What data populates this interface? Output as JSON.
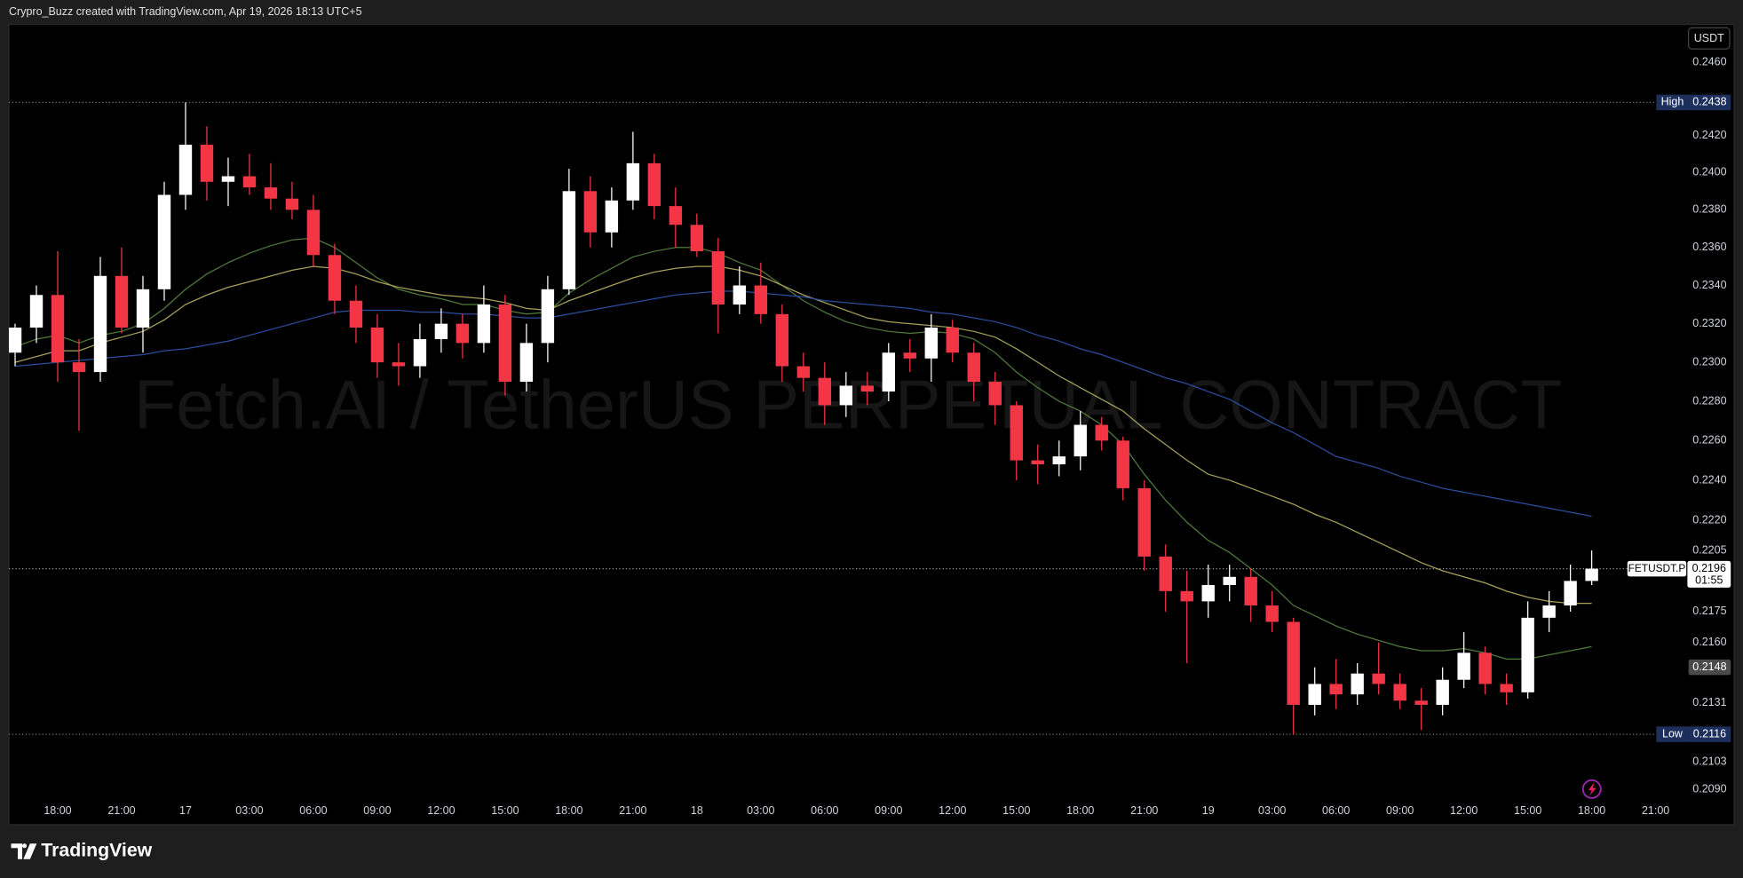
{
  "header": "Crypro_Buzz created with TradingView.com, Apr 19, 2026 18:13 UTC+5",
  "logo": "TradingView",
  "chart_data": {
    "type": "candlestick",
    "watermark": "Fetch.AI / TetherUS PERPETUAL CONTRACT",
    "currency": "USDT",
    "log_scale": true,
    "grid": false,
    "colors": {
      "up": "#ffffff",
      "down": "#f23645"
    },
    "categories": [
      null,
      null,
      "18:00",
      null,
      null,
      "21:00",
      null,
      null,
      "17",
      null,
      null,
      "03:00",
      null,
      null,
      "06:00",
      null,
      null,
      "09:00",
      null,
      null,
      "12:00",
      null,
      null,
      "15:00",
      null,
      null,
      "18:00",
      null,
      null,
      "21:00",
      null,
      null,
      "18",
      null,
      null,
      "03:00",
      null,
      null,
      "06:00",
      null,
      null,
      "09:00",
      null,
      null,
      "12:00",
      null,
      null,
      "15:00",
      null,
      null,
      "18:00",
      null,
      null,
      "21:00",
      null,
      null,
      "19",
      null,
      null,
      "03:00",
      null,
      null,
      "06:00",
      null,
      null,
      "09:00",
      null,
      null,
      "12:00",
      null,
      null,
      "15:00",
      null,
      null,
      "18:00",
      null,
      null,
      "21:00"
    ],
    "open": [
      0.2305,
      0.2318,
      0.2335,
      0.23,
      0.2295,
      0.2345,
      0.2318,
      0.2338,
      0.2388,
      0.2415,
      0.2395,
      0.2398,
      0.2392,
      0.2386,
      0.238,
      0.2356,
      0.2332,
      0.2318,
      0.23,
      0.2298,
      0.2312,
      0.232,
      0.231,
      0.233,
      0.229,
      0.231,
      0.2338,
      0.239,
      0.2368,
      0.2385,
      0.2405,
      0.2382,
      0.2372,
      0.2358,
      0.233,
      0.234,
      0.2325,
      0.2298,
      0.2292,
      0.2278,
      0.2288,
      0.2285,
      0.2305,
      0.2302,
      0.2318,
      0.2305,
      0.229,
      0.2278,
      0.225,
      0.2248,
      0.2252,
      0.2268,
      0.226,
      0.2236,
      0.2202,
      0.2185,
      0.218,
      0.2188,
      0.2192,
      0.2178,
      0.217,
      0.213,
      0.214,
      0.2135,
      0.2145,
      0.214,
      0.2132,
      0.213,
      0.2142,
      0.2155,
      0.214,
      0.2136,
      0.2172,
      0.2178,
      0.219,
      null,
      null,
      null
    ],
    "high": [
      0.232,
      0.234,
      0.2358,
      0.2312,
      0.2355,
      0.236,
      0.2345,
      0.2395,
      0.2438,
      0.2425,
      0.2408,
      0.241,
      0.2405,
      0.2395,
      0.2388,
      0.2362,
      0.234,
      0.2325,
      0.231,
      0.232,
      0.2328,
      0.2325,
      0.234,
      0.2335,
      0.232,
      0.2345,
      0.2402,
      0.2398,
      0.2392,
      0.2422,
      0.241,
      0.2392,
      0.2378,
      0.2365,
      0.235,
      0.2352,
      0.233,
      0.2305,
      0.23,
      0.2295,
      0.2295,
      0.231,
      0.2312,
      0.2325,
      0.2322,
      0.231,
      0.2295,
      0.228,
      0.2258,
      0.226,
      0.2275,
      0.2272,
      0.2262,
      0.224,
      0.2208,
      0.2195,
      0.2198,
      0.2198,
      0.2196,
      0.2185,
      0.2172,
      0.2148,
      0.2152,
      0.215,
      0.216,
      0.2145,
      0.2138,
      0.2148,
      0.2165,
      0.2158,
      0.2145,
      0.218,
      0.2185,
      0.2198,
      0.2205,
      null,
      null,
      null
    ],
    "low": [
      0.2298,
      0.231,
      0.229,
      0.2265,
      0.229,
      0.2315,
      0.2305,
      0.2332,
      0.238,
      0.2385,
      0.2382,
      0.2388,
      0.238,
      0.2375,
      0.235,
      0.2325,
      0.231,
      0.2292,
      0.2288,
      0.2292,
      0.2305,
      0.2302,
      0.2305,
      0.2283,
      0.2285,
      0.23,
      0.2335,
      0.236,
      0.236,
      0.238,
      0.2375,
      0.236,
      0.2355,
      0.2315,
      0.2325,
      0.232,
      0.229,
      0.2285,
      0.2268,
      0.2272,
      0.2278,
      0.228,
      0.2295,
      0.229,
      0.23,
      0.228,
      0.2268,
      0.224,
      0.2238,
      0.2242,
      0.2245,
      0.2255,
      0.223,
      0.2195,
      0.2175,
      0.215,
      0.2172,
      0.218,
      0.217,
      0.2165,
      0.2116,
      0.2125,
      0.2128,
      0.213,
      0.2135,
      0.2128,
      0.2118,
      0.2125,
      0.2138,
      0.2135,
      0.213,
      0.2133,
      0.2165,
      0.2175,
      0.2188,
      null,
      null,
      null
    ],
    "close": [
      0.2318,
      0.2335,
      0.23,
      0.2295,
      0.2345,
      0.2318,
      0.2338,
      0.2388,
      0.2415,
      0.2395,
      0.2398,
      0.2392,
      0.2386,
      0.238,
      0.2356,
      0.2332,
      0.2318,
      0.23,
      0.2298,
      0.2312,
      0.232,
      0.231,
      0.233,
      0.229,
      0.231,
      0.2338,
      0.239,
      0.2368,
      0.2385,
      0.2405,
      0.2382,
      0.2372,
      0.2358,
      0.233,
      0.234,
      0.2325,
      0.2298,
      0.2292,
      0.2278,
      0.2288,
      0.2285,
      0.2305,
      0.2302,
      0.2318,
      0.2305,
      0.229,
      0.2278,
      0.225,
      0.2248,
      0.2252,
      0.2268,
      0.226,
      0.2236,
      0.2202,
      0.2185,
      0.218,
      0.2188,
      0.2192,
      0.2178,
      0.217,
      0.213,
      0.214,
      0.2135,
      0.2145,
      0.214,
      0.2132,
      0.213,
      0.2142,
      0.2155,
      0.214,
      0.2136,
      0.2172,
      0.2178,
      0.219,
      0.2196,
      null,
      null,
      null
    ],
    "series": [
      {
        "color": "#4f7a3a",
        "values": [
          0.2308,
          0.2312,
          0.2314,
          0.231,
          0.2314,
          0.2316,
          0.232,
          0.2328,
          0.2338,
          0.2346,
          0.2352,
          0.2357,
          0.2361,
          0.2364,
          0.2365,
          0.236,
          0.2352,
          0.2344,
          0.2338,
          0.2335,
          0.2333,
          0.233,
          0.233,
          0.2327,
          0.2325,
          0.2326,
          0.2336,
          0.2343,
          0.2349,
          0.2355,
          0.2358,
          0.236,
          0.236,
          0.2357,
          0.2352,
          0.2348,
          0.234,
          0.2332,
          0.2326,
          0.2321,
          0.2318,
          0.2316,
          0.2315,
          0.2316,
          0.2315,
          0.2312,
          0.2305,
          0.2295,
          0.2287,
          0.228,
          0.2275,
          0.2268,
          0.2258,
          0.2243,
          0.223,
          0.2219,
          0.221,
          0.2204,
          0.2196,
          0.2188,
          0.2178,
          0.2173,
          0.2168,
          0.2164,
          0.2161,
          0.2158,
          0.2156,
          0.2156,
          0.2157,
          0.2155,
          0.2152,
          0.2152,
          0.2154,
          0.2156,
          0.2158,
          null,
          null,
          null
        ]
      },
      {
        "color": "#a8a05a",
        "values": [
          0.23,
          0.2303,
          0.2306,
          0.2306,
          0.231,
          0.2313,
          0.2316,
          0.2322,
          0.233,
          0.2335,
          0.2339,
          0.2342,
          0.2345,
          0.2348,
          0.235,
          0.2349,
          0.2346,
          0.2342,
          0.2339,
          0.2337,
          0.2335,
          0.2334,
          0.2333,
          0.2331,
          0.2328,
          0.2327,
          0.2332,
          0.2336,
          0.234,
          0.2344,
          0.2347,
          0.2349,
          0.235,
          0.235,
          0.2348,
          0.2345,
          0.234,
          0.2335,
          0.2331,
          0.2327,
          0.2323,
          0.2321,
          0.232,
          0.2319,
          0.2318,
          0.2316,
          0.2313,
          0.2307,
          0.23,
          0.2293,
          0.2287,
          0.2281,
          0.2275,
          0.2266,
          0.2258,
          0.225,
          0.2243,
          0.224,
          0.2236,
          0.2232,
          0.2228,
          0.2223,
          0.2219,
          0.2214,
          0.2209,
          0.2204,
          0.2199,
          0.2195,
          0.2192,
          0.2189,
          0.2185,
          0.2182,
          0.218,
          0.2179,
          0.2179,
          null,
          null,
          null
        ]
      },
      {
        "color": "#2c4c9c",
        "values": [
          0.2298,
          0.2299,
          0.23,
          0.2301,
          0.2302,
          0.2303,
          0.2304,
          0.2306,
          0.2307,
          0.2309,
          0.2311,
          0.2314,
          0.2317,
          0.232,
          0.2323,
          0.2326,
          0.2327,
          0.2327,
          0.2327,
          0.2326,
          0.2326,
          0.2325,
          0.2325,
          0.2324,
          0.2323,
          0.2323,
          0.2325,
          0.2327,
          0.2329,
          0.2331,
          0.2333,
          0.2335,
          0.2336,
          0.2337,
          0.2337,
          0.2336,
          0.2335,
          0.2334,
          0.2332,
          0.2331,
          0.233,
          0.2329,
          0.2328,
          0.2326,
          0.2325,
          0.2323,
          0.2321,
          0.2318,
          0.2314,
          0.2311,
          0.2307,
          0.2304,
          0.23,
          0.2296,
          0.2292,
          0.2289,
          0.2285,
          0.2281,
          0.2275,
          0.2269,
          0.2264,
          0.2258,
          0.2252,
          0.2249,
          0.2246,
          0.2242,
          0.2239,
          0.2236,
          0.2234,
          0.2232,
          0.223,
          0.2228,
          0.2226,
          0.2224,
          0.2222,
          null,
          null,
          null
        ]
      }
    ],
    "ylim": [
      0.2072,
      0.2481
    ],
    "yticks": [
      {
        "value": 0.246,
        "label": "0.2460"
      },
      {
        "value": 0.242,
        "label": "0.2420"
      },
      {
        "value": 0.24,
        "label": "0.2400"
      },
      {
        "value": 0.238,
        "label": "0.2380"
      },
      {
        "value": 0.236,
        "label": "0.2360"
      },
      {
        "value": 0.234,
        "label": "0.2340"
      },
      {
        "value": 0.232,
        "label": "0.2320"
      },
      {
        "value": 0.23,
        "label": "0.2300"
      },
      {
        "value": 0.228,
        "label": "0.2280"
      },
      {
        "value": 0.226,
        "label": "0.2260"
      },
      {
        "value": 0.224,
        "label": "0.2240"
      },
      {
        "value": 0.222,
        "label": "0.2220"
      },
      0.2205,
      0.2175,
      {
        "value": 0.216,
        "label": "0.2160"
      },
      0.2131,
      0.2103,
      {
        "value": 0.209,
        "label": "0.2090"
      }
    ],
    "session_high": {
      "label": "High",
      "value": 0.2438
    },
    "session_low": {
      "label": "Low",
      "value": 0.2116
    },
    "last_price": {
      "symbol": "FETUSDT.P",
      "value": 0.2196,
      "countdown": "01:55"
    },
    "marker_price": 0.2148
  }
}
